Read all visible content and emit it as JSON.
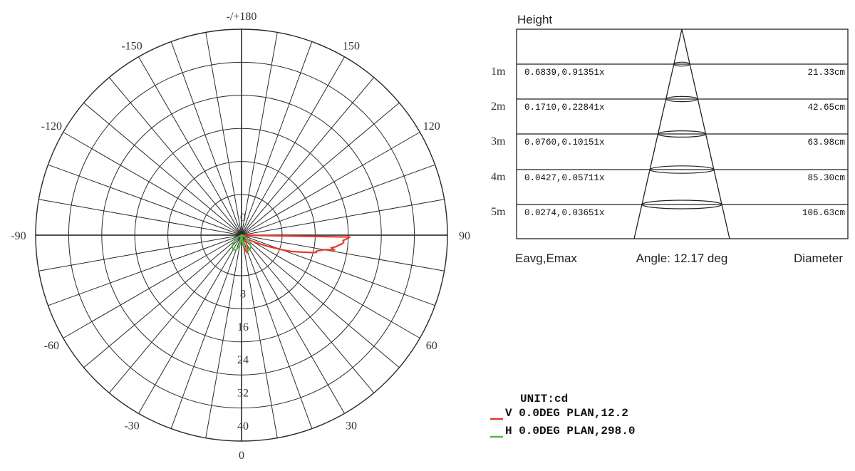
{
  "chart_data": [
    {
      "type": "polar",
      "unit_label": "UNIT:cd",
      "angle_labels": [
        "-/+180",
        "150",
        "120",
        "90",
        "60",
        "30",
        "0",
        "-30",
        "-60",
        "-90",
        "-120",
        "-150"
      ],
      "radial_labels": [
        "0",
        "8",
        "16",
        "24",
        "32",
        "40"
      ],
      "radial_range": [
        0,
        40
      ],
      "series": [
        {
          "name": "V 0.0DEG PLAN,12.2",
          "color": "#e53a2a",
          "points": [
            [
              0,
              0
            ],
            [
              4,
              1.5
            ],
            [
              8,
              2.2
            ],
            [
              12,
              3.2
            ],
            [
              15,
              4
            ],
            [
              18,
              4.5
            ],
            [
              22,
              4
            ],
            [
              26,
              3.4
            ],
            [
              30,
              2.3
            ],
            [
              45,
              1.3
            ],
            [
              55,
              1.8
            ],
            [
              60,
              2.8
            ],
            [
              64,
              4.6
            ],
            [
              66,
              6.2
            ],
            [
              68,
              7.8
            ],
            [
              70,
              10.4
            ],
            [
              72,
              12.8
            ],
            [
              74,
              14.8
            ],
            [
              76,
              17.4
            ],
            [
              77,
              18.6
            ],
            [
              78,
              18.5
            ],
            [
              80,
              20.3
            ],
            [
              81,
              22.8
            ],
            [
              82,
              21.9
            ],
            [
              83,
              23.0
            ],
            [
              84,
              23.6
            ],
            [
              85,
              24.4
            ],
            [
              86,
              24.8
            ],
            [
              87,
              24.6
            ],
            [
              88,
              25.5
            ],
            [
              89,
              26.2
            ],
            [
              90,
              0
            ]
          ]
        },
        {
          "name": "H 0.0DEG PLAN,298.0",
          "color": "#4fb848",
          "points": [
            [
              0,
              0
            ],
            [
              -10,
              2.4
            ],
            [
              -20,
              3.8
            ],
            [
              -30,
              4.1
            ],
            [
              -40,
              3.5
            ],
            [
              -50,
              2.4
            ],
            [
              -60,
              0.9
            ],
            [
              -70,
              0
            ],
            [
              0,
              0
            ],
            [
              10,
              2.4
            ],
            [
              20,
              3.8
            ],
            [
              30,
              4.1
            ],
            [
              40,
              3.5
            ],
            [
              50,
              2.4
            ],
            [
              60,
              0.9
            ],
            [
              70,
              0
            ]
          ]
        }
      ]
    },
    {
      "type": "table",
      "title": "Height",
      "rows": [
        {
          "height": "1m",
          "eavg_emax": "0.6839,0.91351x",
          "diameter": "21.33cm"
        },
        {
          "height": "2m",
          "eavg_emax": "0.1710,0.22841x",
          "diameter": "42.65cm"
        },
        {
          "height": "3m",
          "eavg_emax": "0.0760,0.10151x",
          "diameter": "63.98cm"
        },
        {
          "height": "4m",
          "eavg_emax": "0.0427,0.05711x",
          "diameter": "85.30cm"
        },
        {
          "height": "5m",
          "eavg_emax": "0.0274,0.03651x",
          "diameter": "106.63cm"
        }
      ],
      "footer_left": "Eavg,Emax",
      "footer_center": "Angle: 12.17 deg",
      "footer_right": "Diameter"
    }
  ]
}
